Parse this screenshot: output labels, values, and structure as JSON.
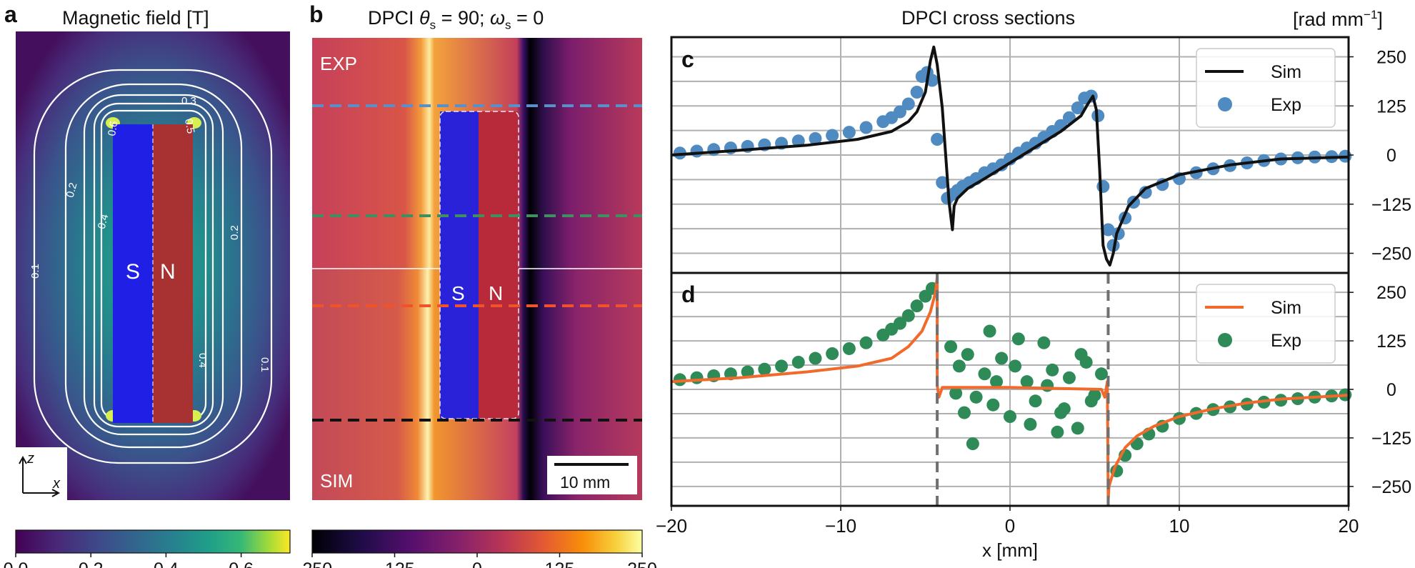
{
  "figure": {
    "panel_a": {
      "letter": "a",
      "title": "Magnetic field [T]",
      "pole_south": "S",
      "pole_north": "N",
      "axis_z": "z",
      "axis_x": "x",
      "contours": [
        {
          "label": "0.1",
          "level": 0.1
        },
        {
          "label": "0.2",
          "level": 0.2
        },
        {
          "label": "0.3",
          "level": 0.3
        },
        {
          "label": "0.4",
          "level": 0.4
        },
        {
          "label": "0.5",
          "level": 0.5
        },
        {
          "label": "0.6",
          "level": 0.6
        }
      ],
      "colorbar": {
        "ticks": [
          {
            "label": "0.0",
            "value": 0.0
          },
          {
            "label": "0.2",
            "value": 0.2
          },
          {
            "label": "0.4",
            "value": 0.4
          },
          {
            "label": "0.6",
            "value": 0.6
          }
        ],
        "min": 0.0,
        "max": 0.73
      }
    },
    "panel_b": {
      "letter": "b",
      "title_prefix": "DPCI ",
      "title_theta": "θ",
      "title_sub": "s",
      "title_mid": " = 90; ",
      "title_omega": "ω",
      "title_end": " = 0",
      "label_exp": "EXP",
      "label_sim": "SIM",
      "pole_south": "S",
      "pole_north": "N",
      "scalebar": "10 mm",
      "colorbar": {
        "ticks": [
          {
            "label": "−250",
            "value": -250
          },
          {
            "label": "−125",
            "value": -125
          },
          {
            "label": "0",
            "value": 0
          },
          {
            "label": "125",
            "value": 125
          },
          {
            "label": "250",
            "value": 250
          }
        ],
        "min": -250,
        "max": 250
      }
    },
    "panel_cd_title": "DPCI cross sections",
    "right_axis_unit": "[rad mm",
    "right_axis_unit_exp": "−1",
    "right_axis_unit_end": "]",
    "panel_c": {
      "letter": "c"
    },
    "panel_d": {
      "letter": "d"
    },
    "colors": {
      "sim_c": "#111111",
      "exp_c": "#4f8ac1",
      "sim_d": "#f26a2b",
      "exp_d": "#2e8b57",
      "cut_blue": "#5b8fc9",
      "cut_green": "#3f8f5f",
      "cut_red": "#f0522a",
      "cut_black": "#111111",
      "magnet_s": "#1f1fe6",
      "magnet_n": "#a83232"
    }
  },
  "chart_data": [
    {
      "panel": "c",
      "type": "line",
      "xlabel": "x [mm]",
      "ylabel": "[rad mm−1]",
      "xlim": [
        -20,
        20
      ],
      "ylim": [
        -300,
        300
      ],
      "xticks": [
        {
          "label": "−20",
          "value": -20
        },
        {
          "label": "−10",
          "value": -10
        },
        {
          "label": "0",
          "value": 0
        },
        {
          "label": "10",
          "value": 10
        },
        {
          "label": "20",
          "value": 20
        }
      ],
      "yticks": [
        {
          "label": "250",
          "value": 250
        },
        {
          "label": "125",
          "value": 125
        },
        {
          "label": "0",
          "value": 0
        },
        {
          "label": "−125",
          "value": -125
        },
        {
          "label": "−250",
          "value": -250
        }
      ],
      "legend": {
        "position": "top-right",
        "sim_label": "Sim",
        "exp_label": "Exp"
      },
      "series": [
        {
          "name": "Sim",
          "style": "line",
          "x": [
            -20,
            -16,
            -12,
            -9,
            -7,
            -6,
            -5.5,
            -5,
            -4.7,
            -4.5,
            -4.3,
            -4,
            -3.6,
            -3.4,
            -3.3,
            -3.1,
            -2.5,
            -1.5,
            0,
            1.5,
            3,
            4.2,
            4.6,
            4.9,
            5.1,
            5.3,
            5.5,
            5.7,
            5.9,
            6.1,
            6.3,
            7,
            8,
            10,
            13,
            16,
            20
          ],
          "y": [
            0,
            12,
            25,
            40,
            60,
            85,
            110,
            160,
            240,
            275,
            230,
            120,
            -120,
            -190,
            -130,
            -110,
            -85,
            -60,
            -20,
            20,
            60,
            100,
            130,
            150,
            115,
            -40,
            -230,
            -265,
            -280,
            -250,
            -200,
            -130,
            -85,
            -50,
            -25,
            -10,
            -5
          ]
        },
        {
          "name": "Exp",
          "style": "scatter",
          "x": [
            -19.5,
            -18.5,
            -17.5,
            -16.5,
            -15.5,
            -14.5,
            -13.5,
            -12.5,
            -11.5,
            -10.5,
            -9.5,
            -8.5,
            -7.5,
            -7,
            -6.5,
            -6,
            -5.5,
            -5.2,
            -4.9,
            -4.6,
            -4.3,
            -4,
            -3.7,
            -3.4,
            -3.1,
            -2.8,
            -2.4,
            -2,
            -1.5,
            -1,
            -0.5,
            0,
            0.5,
            1,
            1.5,
            2,
            2.5,
            3,
            3.5,
            4,
            4.4,
            4.8,
            5.2,
            5.5,
            5.8,
            6.1,
            6.4,
            6.8,
            7.3,
            8,
            9,
            10,
            11,
            12,
            13,
            14,
            15,
            16,
            17,
            18,
            19,
            19.8
          ],
          "y": [
            5,
            10,
            14,
            18,
            22,
            26,
            30,
            36,
            42,
            50,
            58,
            70,
            85,
            95,
            110,
            130,
            160,
            200,
            210,
            190,
            40,
            -70,
            -110,
            -100,
            -90,
            -80,
            -70,
            -60,
            -45,
            -35,
            -25,
            -10,
            5,
            18,
            30,
            45,
            60,
            75,
            95,
            120,
            145,
            150,
            100,
            -80,
            -190,
            -230,
            -200,
            -160,
            -120,
            -95,
            -75,
            -60,
            -45,
            -35,
            -27,
            -20,
            -14,
            -10,
            -7,
            -5,
            -4,
            -3
          ]
        }
      ]
    },
    {
      "panel": "d",
      "type": "line",
      "xlabel": "x [mm]",
      "ylabel": "[rad mm−1]",
      "xlim": [
        -20,
        20
      ],
      "ylim": [
        -300,
        300
      ],
      "xticks": [
        {
          "label": "−20",
          "value": -20
        },
        {
          "label": "−10",
          "value": -10
        },
        {
          "label": "0",
          "value": 0
        },
        {
          "label": "10",
          "value": 10
        },
        {
          "label": "20",
          "value": 20
        }
      ],
      "yticks": [
        {
          "label": "250",
          "value": 250
        },
        {
          "label": "125",
          "value": 125
        },
        {
          "label": "0",
          "value": 0
        },
        {
          "label": "−125",
          "value": -125
        },
        {
          "label": "−250",
          "value": -250
        }
      ],
      "vlines": [
        -4.3,
        5.8
      ],
      "legend": {
        "position": "top-right",
        "sim_label": "Sim",
        "exp_label": "Exp"
      },
      "series": [
        {
          "name": "Sim",
          "style": "line",
          "x": [
            -20,
            -16,
            -12,
            -9,
            -7,
            -6,
            -5.2,
            -4.7,
            -4.4,
            -4.3,
            -4.3,
            -4.2,
            -4.0,
            0,
            5.4,
            5.6,
            5.75,
            5.8,
            5.85,
            6.2,
            6.8,
            7.5,
            8.5,
            10,
            12,
            14,
            16,
            18,
            20
          ],
          "y": [
            20,
            30,
            45,
            60,
            80,
            110,
            150,
            200,
            250,
            290,
            10,
            -20,
            5,
            5,
            0,
            -20,
            20,
            -285,
            -250,
            -200,
            -150,
            -120,
            -95,
            -70,
            -50,
            -35,
            -25,
            -20,
            -15
          ]
        },
        {
          "name": "Exp",
          "style": "scatter",
          "x": [
            -19.5,
            -18.5,
            -17.5,
            -16.5,
            -15.5,
            -14.5,
            -13.5,
            -12.5,
            -11.5,
            -10.5,
            -9.5,
            -8.5,
            -7.5,
            -7,
            -6.5,
            -6,
            -5.5,
            -5,
            -4.6,
            -3.5,
            -3,
            -2.5,
            -2,
            -1.5,
            -1,
            -0.5,
            0,
            0.5,
            1,
            1.5,
            2,
            2.5,
            3,
            3.5,
            4,
            4.5,
            5,
            5.4,
            -3.2,
            -2.2,
            -1.2,
            0.3,
            1.2,
            2.2,
            3.2,
            4.2,
            -2.7,
            -0.8,
            2.8,
            4.8,
            6.3,
            6.8,
            7.5,
            8.2,
            9,
            10,
            11,
            12,
            13,
            14,
            15,
            16,
            17,
            18,
            19,
            19.8
          ],
          "y": [
            25,
            30,
            35,
            40,
            45,
            52,
            60,
            70,
            80,
            92,
            105,
            120,
            140,
            155,
            170,
            190,
            215,
            240,
            260,
            110,
            60,
            90,
            -20,
            40,
            -40,
            80,
            -70,
            130,
            20,
            -30,
            120,
            50,
            -60,
            30,
            -100,
            70,
            -15,
            40,
            -10,
            -140,
            150,
            60,
            -90,
            10,
            -50,
            90,
            -60,
            20,
            -110,
            -30,
            -210,
            -170,
            -140,
            -115,
            -95,
            -75,
            -62,
            -52,
            -45,
            -38,
            -33,
            -28,
            -24,
            -20,
            -17,
            -14
          ]
        }
      ]
    }
  ]
}
